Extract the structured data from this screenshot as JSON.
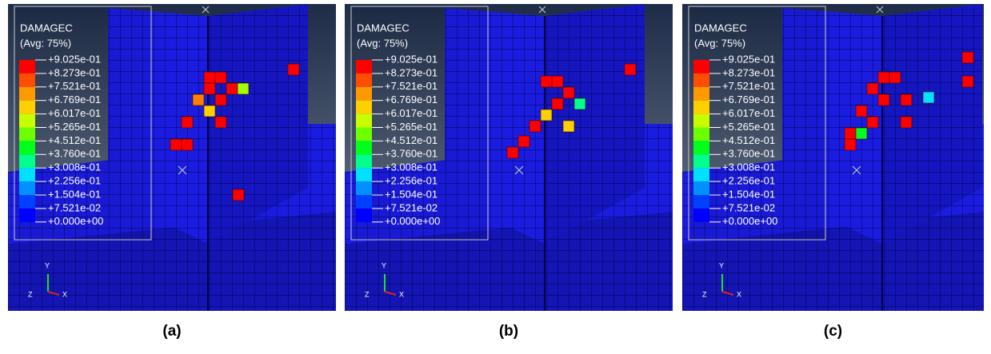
{
  "legend_colors": [
    "#ff0000",
    "#ff4d00",
    "#ff9900",
    "#ffd000",
    "#c8ff00",
    "#6cff00",
    "#00ff1a",
    "#00ff8c",
    "#00e0ff",
    "#0090ff",
    "#0040ff",
    "#0000ff"
  ],
  "panels": [
    {
      "legend": {
        "title": "DAMAGEC",
        "subtitle": "(Avg: 75%)",
        "labels": [
          "+9.025e-01",
          "+8.273e-01",
          "+7.521e-01",
          "+6.769e-01",
          "+6.017e-01",
          "+5.265e-01",
          "+4.512e-01",
          "+3.760e-01",
          "+3.008e-01",
          "+2.256e-01",
          "+1.504e-01",
          "+7.521e-02",
          "+0.000e+00"
        ]
      },
      "axes": {
        "y": "Y",
        "z": "Z",
        "x": "X"
      },
      "caption": "(a)"
    },
    {
      "legend": {
        "title": "DAMAGEC",
        "subtitle": "(Avg: 75%)",
        "labels": [
          "+9.025e-01",
          "+8.273e-01",
          "+7.521e-01",
          "+6.769e-01",
          "+6.017e-01",
          "+5.265e-01",
          "+4.512e-01",
          "+3.760e-01",
          "+3.008e-01",
          "+2.256e-01",
          "+1.504e-01",
          "+7.521e-02",
          "+0.000e+00"
        ]
      },
      "axes": {
        "y": "Y",
        "z": "Z",
        "x": "X"
      },
      "caption": "(b)"
    },
    {
      "legend": {
        "title": "DAMAGEC",
        "subtitle": "(Avg: 75%)",
        "labels": [
          "+9.025e-01",
          "+8.273e-01",
          "+7.521e-01",
          "+6.769e-01",
          "+6.017e-01",
          "+5.265e-01",
          "+4.512e-01",
          "+3.760e-01",
          "+3.008e-01",
          "+2.256e-01",
          "+1.504e-01",
          "+7.521e-02",
          "+0.000e+00"
        ]
      },
      "axes": {
        "y": "Y",
        "z": "Z",
        "x": "X"
      },
      "caption": "(c)"
    }
  ]
}
